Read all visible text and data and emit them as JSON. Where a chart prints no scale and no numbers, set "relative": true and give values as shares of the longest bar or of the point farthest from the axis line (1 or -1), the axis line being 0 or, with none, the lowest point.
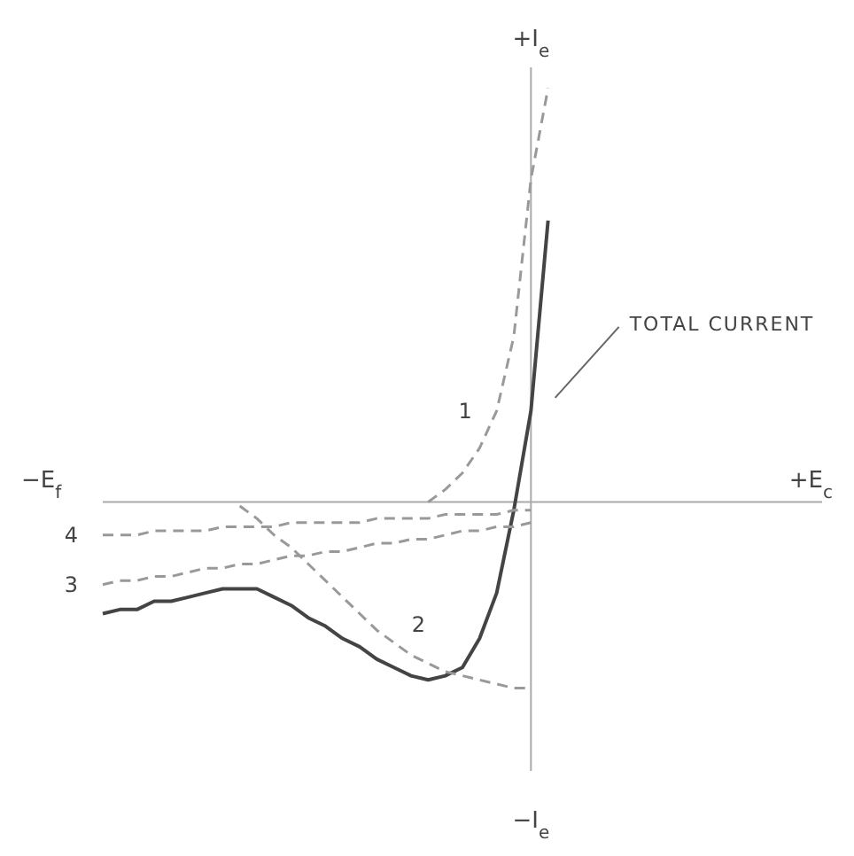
{
  "chart_data": {
    "type": "line",
    "relative": true,
    "grid": false,
    "legend": false,
    "marker": "none",
    "categories": [
      null,
      null,
      null,
      null,
      null,
      null,
      null,
      null,
      null,
      null,
      null,
      null,
      null,
      null,
      null,
      null,
      null,
      null,
      null,
      null,
      null,
      null,
      null,
      null,
      null,
      null,
      null,
      null,
      null,
      null,
      null,
      null,
      null,
      null,
      null,
      null,
      null,
      null,
      null,
      null,
      null,
      null,
      null
    ],
    "annotations": [
      "+I$_{e}$",
      "−I$_{e}$",
      "−E$_{f}$",
      "+E$_{c}$"
    ],
    "series": [
      {
        "name": "TOTAL CURRENT",
        "color": "#444444",
        "line_style": "solid",
        "values": [
          -0.27,
          -0.26,
          -0.26,
          -0.24,
          -0.24,
          -0.23,
          -0.22,
          -0.21,
          -0.21,
          -0.21,
          -0.23,
          -0.25,
          -0.28,
          -0.3,
          -0.33,
          -0.35,
          -0.38,
          -0.4,
          -0.42,
          -0.43,
          -0.42,
          -0.4,
          -0.33,
          -0.22,
          -0.02,
          0.22,
          0.68,
          null,
          null,
          null,
          null,
          null,
          null,
          null,
          null,
          null,
          null,
          null,
          null,
          null,
          null,
          null,
          null
        ]
      },
      {
        "name": "1",
        "color": "#999999",
        "line_style": "dashed",
        "values": [
          null,
          null,
          null,
          null,
          null,
          null,
          null,
          null,
          null,
          null,
          null,
          null,
          null,
          null,
          null,
          null,
          null,
          null,
          null,
          0,
          0.03,
          0.07,
          0.13,
          0.22,
          0.4,
          0.78,
          1,
          null,
          null,
          null,
          null,
          null,
          null,
          null,
          null,
          null,
          null,
          null,
          null,
          null,
          null,
          null,
          null
        ]
      },
      {
        "name": "2",
        "color": "#999999",
        "line_style": "dashed",
        "values": [
          null,
          null,
          null,
          null,
          null,
          null,
          null,
          null,
          -0.01,
          -0.04,
          -0.08,
          -0.11,
          -0.15,
          -0.19,
          -0.23,
          -0.27,
          -0.31,
          -0.34,
          -0.37,
          -0.39,
          -0.41,
          -0.42,
          -0.43,
          -0.44,
          -0.45,
          -0.45,
          null,
          null,
          null,
          null,
          null,
          null,
          null,
          null,
          null,
          null,
          null,
          null,
          null,
          null,
          null,
          null,
          null
        ]
      },
      {
        "name": "3",
        "color": "#999999",
        "line_style": "dashed",
        "values": [
          -0.2,
          -0.19,
          -0.19,
          -0.18,
          -0.18,
          -0.17,
          -0.16,
          -0.16,
          -0.15,
          -0.15,
          -0.14,
          -0.13,
          -0.13,
          -0.12,
          -0.12,
          -0.11,
          -0.1,
          -0.1,
          -0.09,
          -0.09,
          -0.08,
          -0.07,
          -0.07,
          -0.06,
          -0.06,
          -0.05,
          null,
          null,
          null,
          null,
          null,
          null,
          null,
          null,
          null,
          null,
          null,
          null,
          null,
          null,
          null,
          null,
          null
        ]
      },
      {
        "name": "4",
        "color": "#999999",
        "line_style": "dashed",
        "values": [
          -0.08,
          -0.08,
          -0.08,
          -0.07,
          -0.07,
          -0.07,
          -0.07,
          -0.06,
          -0.06,
          -0.06,
          -0.06,
          -0.05,
          -0.05,
          -0.05,
          -0.05,
          -0.05,
          -0.04,
          -0.04,
          -0.04,
          -0.04,
          -0.03,
          -0.03,
          -0.03,
          -0.03,
          -0.02,
          -0.02,
          null,
          null,
          null,
          null,
          null,
          null,
          null,
          null,
          null,
          null,
          null,
          null,
          null,
          null,
          null,
          null,
          null
        ]
      }
    ]
  }
}
